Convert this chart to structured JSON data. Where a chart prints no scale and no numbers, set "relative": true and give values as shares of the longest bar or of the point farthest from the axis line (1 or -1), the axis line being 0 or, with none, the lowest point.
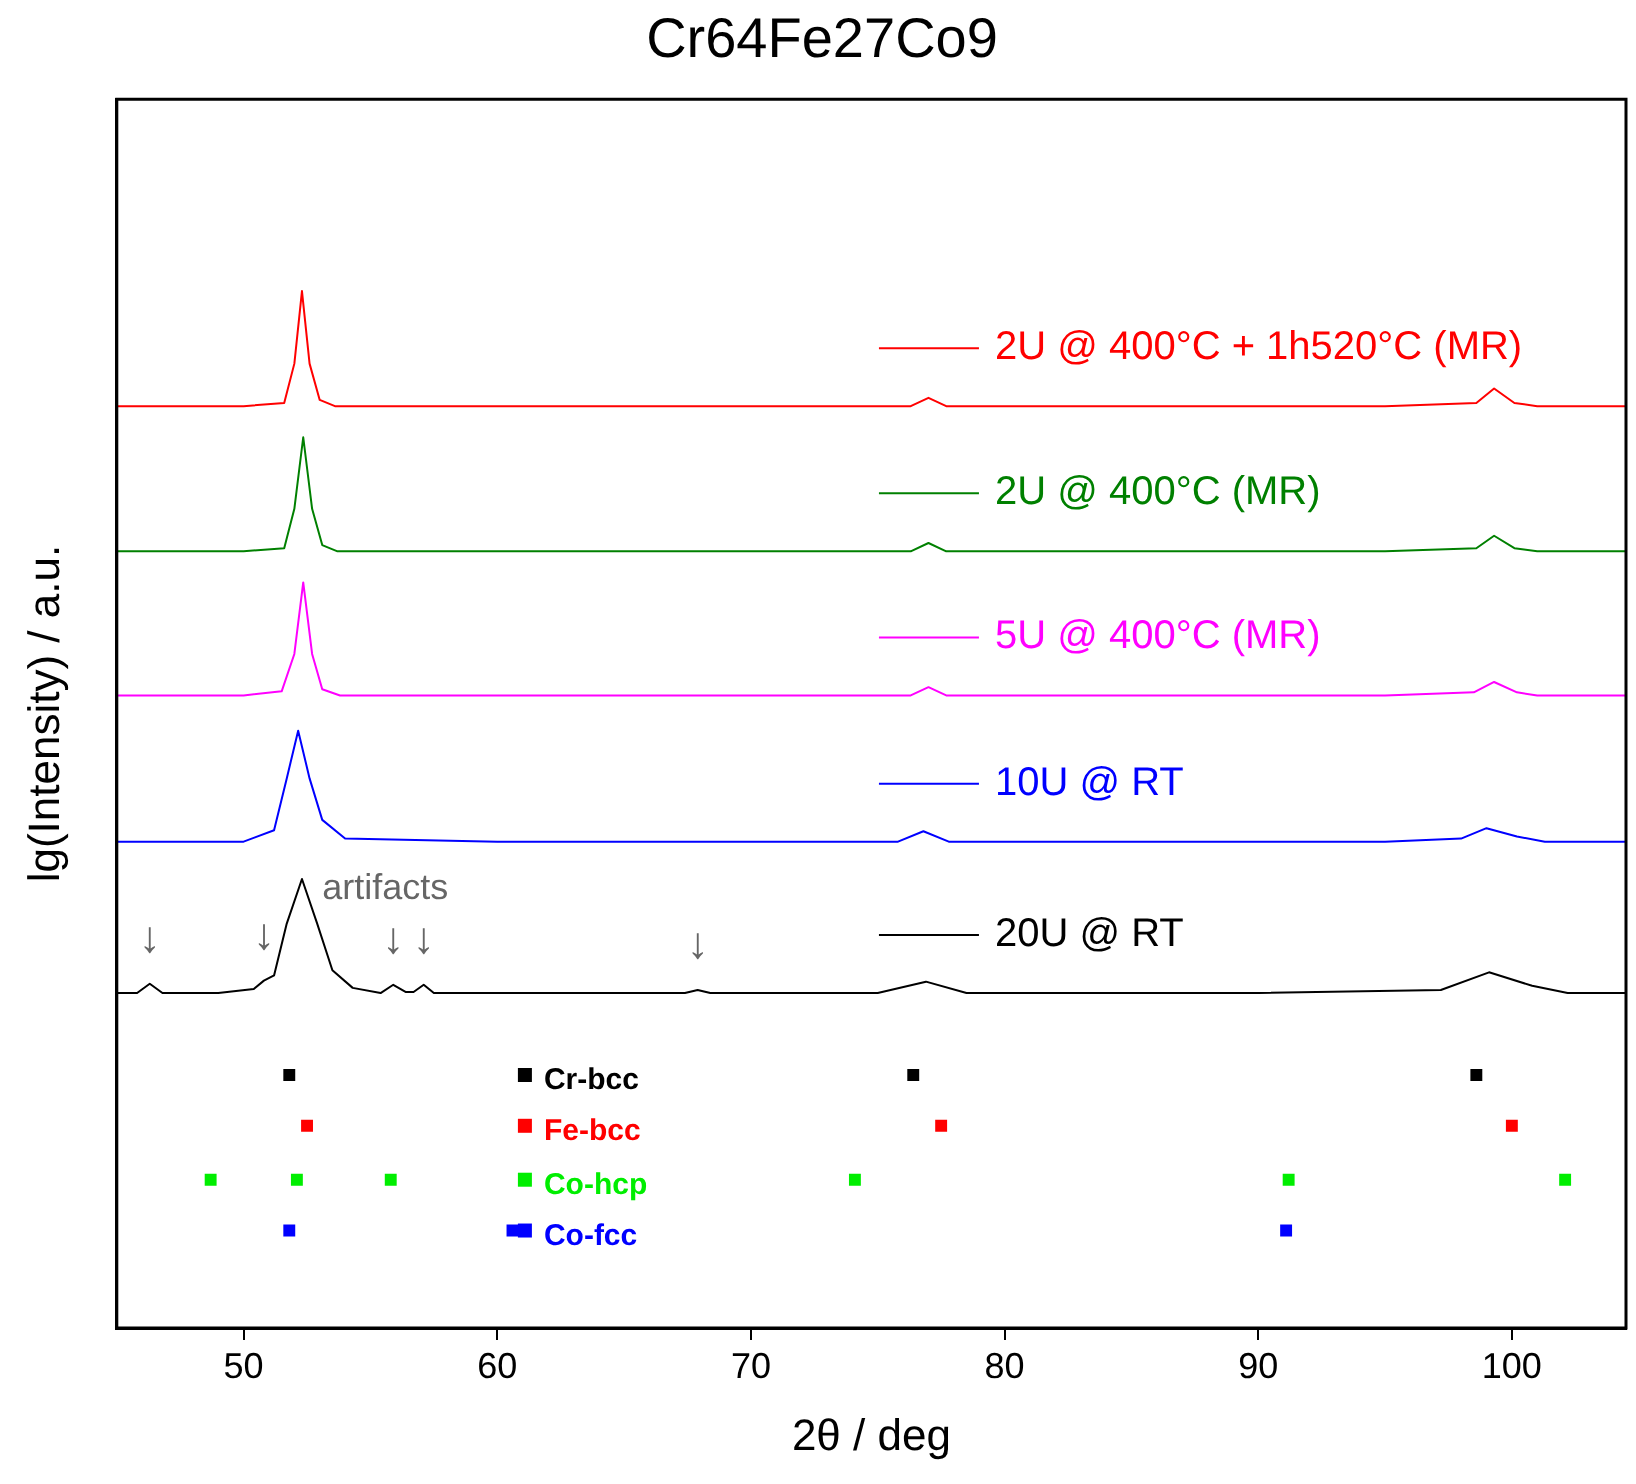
{
  "chart_data": {
    "type": "line",
    "title": "Cr64Fe27Co9",
    "xlabel": "2θ / deg",
    "ylabel": "lg(Intensity) / a.u.",
    "relative": true,
    "xlim": [
      45,
      104.5
    ],
    "xticks": [
      50,
      60,
      70,
      80,
      90,
      100
    ],
    "tick_labels": "x",
    "grid": false,
    "legend": "right",
    "marker": "none",
    "series": [
      {
        "name": "2U @ 400°C + 1h520°C (MR)",
        "color": "#ff0000",
        "x": [
          45,
          50,
          51.6,
          52.0,
          52.3,
          52.6,
          53.0,
          53.6,
          60,
          70,
          76.3,
          77,
          77.7,
          85,
          95,
          98.6,
          99.3,
          100.1,
          101,
          104.5
        ],
        "values": [
          0.889,
          0.889,
          0.892,
          0.93,
          1.0,
          0.93,
          0.895,
          0.889,
          0.889,
          0.889,
          0.889,
          0.897,
          0.889,
          0.889,
          0.889,
          0.892,
          0.906,
          0.892,
          0.889,
          0.889
        ]
      },
      {
        "name": "2U @ 400°C (MR)",
        "color": "#008000",
        "x": [
          45,
          50,
          51.6,
          52.0,
          52.35,
          52.7,
          53.1,
          53.7,
          60,
          70,
          76.3,
          77,
          77.7,
          85,
          95,
          98.6,
          99.3,
          100.1,
          101,
          104.5
        ],
        "values": [
          0.749,
          0.749,
          0.752,
          0.79,
          0.859,
          0.79,
          0.755,
          0.749,
          0.749,
          0.749,
          0.749,
          0.757,
          0.749,
          0.749,
          0.749,
          0.752,
          0.764,
          0.752,
          0.749,
          0.749
        ]
      },
      {
        "name": "5U @ 400°C (MR)",
        "color": "#ff00ff",
        "x": [
          45,
          50,
          51.5,
          52.0,
          52.35,
          52.7,
          53.1,
          53.8,
          60,
          70,
          76.3,
          77,
          77.7,
          85,
          95,
          98.5,
          99.3,
          100.2,
          101,
          104.5
        ],
        "values": [
          0.61,
          0.61,
          0.614,
          0.65,
          0.719,
          0.65,
          0.616,
          0.61,
          0.61,
          0.61,
          0.61,
          0.618,
          0.61,
          0.61,
          0.61,
          0.613,
          0.623,
          0.613,
          0.61,
          0.61
        ]
      },
      {
        "name": "10U @ RT",
        "color": "#0000ff",
        "x": [
          45,
          50,
          51.2,
          51.7,
          52.15,
          52.6,
          53.1,
          54,
          60,
          70,
          75.8,
          76.8,
          77.8,
          85,
          95,
          98.0,
          99.0,
          100.2,
          101.3,
          104.5
        ],
        "values": [
          0.469,
          0.469,
          0.48,
          0.53,
          0.576,
          0.53,
          0.49,
          0.472,
          0.469,
          0.469,
          0.469,
          0.479,
          0.469,
          0.469,
          0.469,
          0.472,
          0.482,
          0.474,
          0.469,
          0.469
        ]
      },
      {
        "name": "20U @ RT",
        "color": "#000000",
        "x": [
          45,
          45.8,
          46.3,
          46.8,
          49,
          50.4,
          50.8,
          51.2,
          51.7,
          52.3,
          52.9,
          53.5,
          54.3,
          55.4,
          55.9,
          56.4,
          56.7,
          57.1,
          57.5,
          60,
          67.4,
          67.9,
          68.4,
          75,
          76.9,
          78.5,
          90,
          97.2,
          99.1,
          100.8,
          102.2,
          104.5
        ],
        "values": [
          0.323,
          0.323,
          0.332,
          0.323,
          0.323,
          0.327,
          0.335,
          0.34,
          0.39,
          0.433,
          0.39,
          0.345,
          0.328,
          0.323,
          0.331,
          0.324,
          0.324,
          0.331,
          0.323,
          0.323,
          0.323,
          0.326,
          0.323,
          0.323,
          0.334,
          0.323,
          0.323,
          0.326,
          0.343,
          0.33,
          0.323,
          0.323
        ]
      },
      {
        "name": "Cr-bcc",
        "type": "scatter",
        "marker": "square",
        "color": "#000000",
        "x": [
          51.8,
          76.4,
          98.6
        ],
        "values": [
          0.244,
          0.244,
          0.244
        ]
      },
      {
        "name": "Fe-bcc",
        "type": "scatter",
        "marker": "square",
        "color": "#ff0000",
        "x": [
          52.5,
          77.5,
          100.0
        ],
        "values": [
          0.195,
          0.195,
          0.195
        ]
      },
      {
        "name": "Co-hcp",
        "type": "scatter",
        "marker": "square",
        "color": "#00ee00",
        "x": [
          48.7,
          52.1,
          55.8,
          74.1,
          91.2,
          102.1
        ],
        "values": [
          0.143,
          0.143,
          0.143,
          0.143,
          0.143,
          0.143
        ]
      },
      {
        "name": "Co-fcc",
        "type": "scatter",
        "marker": "square",
        "color": "#0000ff",
        "x": [
          51.8,
          60.6,
          91.1
        ],
        "values": [
          0.094,
          0.094,
          0.094
        ]
      }
    ],
    "annotations": [
      {
        "text": "artifacts",
        "x": 55.9,
        "y": 0.331
      },
      {
        "text": "↓",
        "x": 46.3,
        "y": 0.332
      },
      {
        "text": "↓",
        "x": 50.8,
        "y": 0.335
      },
      {
        "text": "↓",
        "x": 55.9,
        "y": 0.331
      },
      {
        "text": "↓",
        "x": 57.1,
        "y": 0.331
      },
      {
        "text": "↓",
        "x": 67.9,
        "y": 0.326
      }
    ]
  }
}
